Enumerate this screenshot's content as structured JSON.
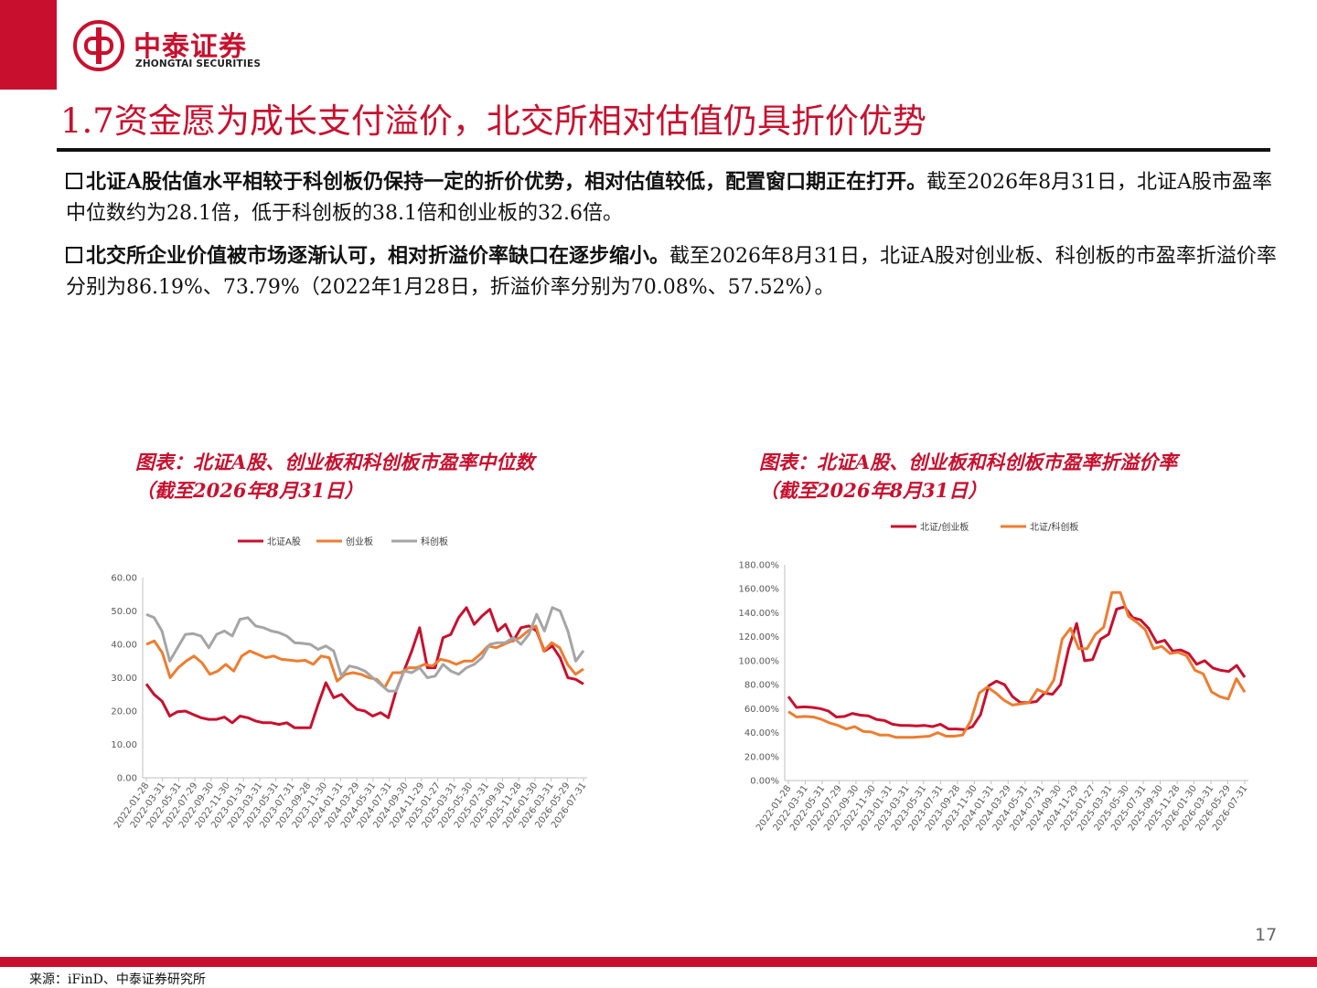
{
  "header": {
    "brand_cn": "中泰证券",
    "brand_en": "ZHONGTAI SECURITIES",
    "title": "1.7资金愿为成长支付溢价，北交所相对估值仍具折价优势"
  },
  "bullets": [
    {
      "bold": "北证A股估值水平相较于科创板仍保持一定的折价优势，相对估值较低，配置窗口期正在打开。",
      "text": "截至2026年8月31日，北证A股市盈率中位数约为28.1倍，低于科创板的38.1倍和创业板的32.6倍。"
    },
    {
      "bold": "北交所企业价值被市场逐渐认可，相对折溢价率缺口在逐步缩小。",
      "text": "截至2026年8月31日，北证A股对创业板、科创板的市盈率折溢价率分别为86.19%、73.79%（2022年1月28日，折溢价率分别为70.08%、57.52%）。"
    }
  ],
  "charts": [
    {
      "title_line1": "图表：北证A股、创业板和科创板市盈率中位数",
      "title_line2": "（截至2026年8月31日）"
    },
    {
      "title_line1": "图表：北证A股、创业板和科创板市盈率折溢价率",
      "title_line2": "（截至2026年8月31日）"
    }
  ],
  "chart_data": [
    {
      "type": "line",
      "title": "",
      "ylim": [
        0,
        60
      ],
      "yticks": [
        "0.00",
        "10.00",
        "20.00",
        "30.00",
        "40.00",
        "50.00",
        "60.00"
      ],
      "grid": false,
      "legend": "top",
      "x_labels": [
        "2022-01-28",
        "2022-03-31",
        "2022-05-31",
        "2022-07-29",
        "2022-09-30",
        "2022-11-30",
        "2023-01-31",
        "2023-03-31",
        "2023-05-31",
        "2023-07-31",
        "2023-09-28",
        "2023-11-30",
        "2024-01-31",
        "2024-03-29",
        "2024-05-31",
        "2024-07-31",
        "2024-09-30",
        "2024-11-29",
        "2025-01-27",
        "2025-03-31",
        "2025-05-30",
        "2025-07-31",
        "2025-09-30",
        "2025-11-28",
        "2026-01-30",
        "2026-03-31",
        "2026-05-29",
        "2026-07-31"
      ],
      "series": [
        {
          "name": "北证A股",
          "color": "#c8102e",
          "values": [
            28.1,
            25,
            23,
            18.5,
            19.8,
            20,
            19,
            18,
            17.5,
            17.5,
            18.2,
            16.5,
            18.5,
            18,
            17,
            16.5,
            16.5,
            16,
            16.5,
            15,
            15,
            15,
            22,
            28.5,
            24,
            25,
            22.5,
            20.5,
            20,
            18.5,
            19.5,
            18,
            26,
            32,
            38,
            45,
            33,
            33,
            42,
            43,
            48,
            51,
            46,
            48.5,
            50.5,
            44,
            46,
            41,
            45,
            45.5,
            44,
            38,
            39.5,
            36,
            30,
            29.5,
            28.1
          ]
        },
        {
          "name": "创业板",
          "color": "#ed7d31",
          "values": [
            40,
            41,
            37.5,
            30,
            33,
            35,
            36.5,
            34.5,
            31,
            32,
            34,
            32,
            36.5,
            38,
            37,
            36,
            36.5,
            35.5,
            35.3,
            35,
            35.2,
            34,
            36.5,
            36,
            29,
            31,
            31.5,
            31,
            30,
            29.5,
            27,
            31.5,
            31.5,
            33,
            33,
            34,
            33.5,
            35.5,
            35,
            34,
            35,
            35,
            37,
            39.5,
            39,
            40,
            41,
            42,
            44,
            45.5,
            38,
            40.5,
            39,
            34,
            31,
            32.6
          ]
        },
        {
          "name": "科创板",
          "color": "#a5a5a5",
          "values": [
            49,
            48,
            44,
            35,
            39,
            43,
            43.2,
            42.5,
            39,
            43,
            44,
            42.5,
            47.5,
            48,
            45.5,
            45,
            44,
            43.5,
            42.5,
            40.5,
            40.3,
            40,
            38.5,
            39.5,
            38,
            30.5,
            33.5,
            33,
            32,
            30,
            28,
            26,
            26,
            32,
            31.5,
            33,
            30,
            30.5,
            34,
            32,
            31,
            33,
            34,
            36,
            40,
            40.5,
            40.5,
            42,
            40,
            43,
            49,
            44,
            51,
            50,
            44,
            35,
            38.1
          ]
        }
      ]
    },
    {
      "type": "line",
      "title": "",
      "ylim": [
        0,
        180
      ],
      "yticks": [
        "0.00%",
        "20.00%",
        "40.00%",
        "60.00%",
        "80.00%",
        "100.00%",
        "120.00%",
        "140.00%",
        "160.00%",
        "180.00%"
      ],
      "grid": false,
      "legend": "top",
      "x_labels": [
        "2022-01-28",
        "2022-03-31",
        "2022-05-31",
        "2022-07-29",
        "2022-09-30",
        "2022-11-30",
        "2023-01-31",
        "2023-03-31",
        "2023-05-31",
        "2023-07-31",
        "2023-09-28",
        "2023-11-30",
        "2024-01-31",
        "2024-03-29",
        "2024-05-31",
        "2024-07-31",
        "2024-09-30",
        "2024-11-29",
        "2025-01-27",
        "2025-03-31",
        "2025-05-30",
        "2025-07-31",
        "2025-09-30",
        "2025-11-28",
        "2026-01-30",
        "2026-03-31",
        "2026-05-29",
        "2026-07-31"
      ],
      "series": [
        {
          "name": "北证/创业板",
          "color": "#c8102e",
          "values": [
            70.08,
            61,
            61.5,
            61,
            60,
            58,
            53,
            53.5,
            56,
            54.5,
            54,
            51,
            50,
            47,
            46,
            46,
            45.5,
            46,
            45,
            47,
            43,
            43,
            42.5,
            45,
            55,
            79,
            83,
            80,
            70,
            65,
            65,
            66,
            73,
            72,
            80,
            110,
            131,
            100,
            101,
            118,
            122,
            143,
            145,
            136,
            134,
            127,
            115,
            117,
            108,
            109,
            106,
            97,
            100,
            94,
            92,
            91,
            96,
            86.19
          ]
        },
        {
          "name": "北证/科创板",
          "color": "#ed7d31",
          "values": [
            57.52,
            53,
            53.5,
            53,
            51,
            48,
            46,
            43,
            45,
            41,
            40.5,
            38,
            38,
            36,
            36,
            36,
            36.5,
            37,
            40,
            37,
            37,
            38,
            50,
            73,
            78,
            73,
            67,
            63,
            64,
            65,
            76,
            73,
            84,
            118,
            127,
            110,
            110,
            122,
            128,
            157,
            157,
            137,
            132,
            126,
            110,
            112,
            106,
            107,
            104,
            92,
            89,
            74,
            70,
            68,
            85,
            73.79
          ]
        }
      ]
    }
  ],
  "legends": {
    "chart1": [
      "北证A股",
      "创业板",
      "科创板"
    ],
    "chart2": [
      "北证/创业板",
      "北证/科创板"
    ]
  },
  "page_number": "17",
  "footer": {
    "source": "来源：iFinD、中泰证券研究所"
  }
}
